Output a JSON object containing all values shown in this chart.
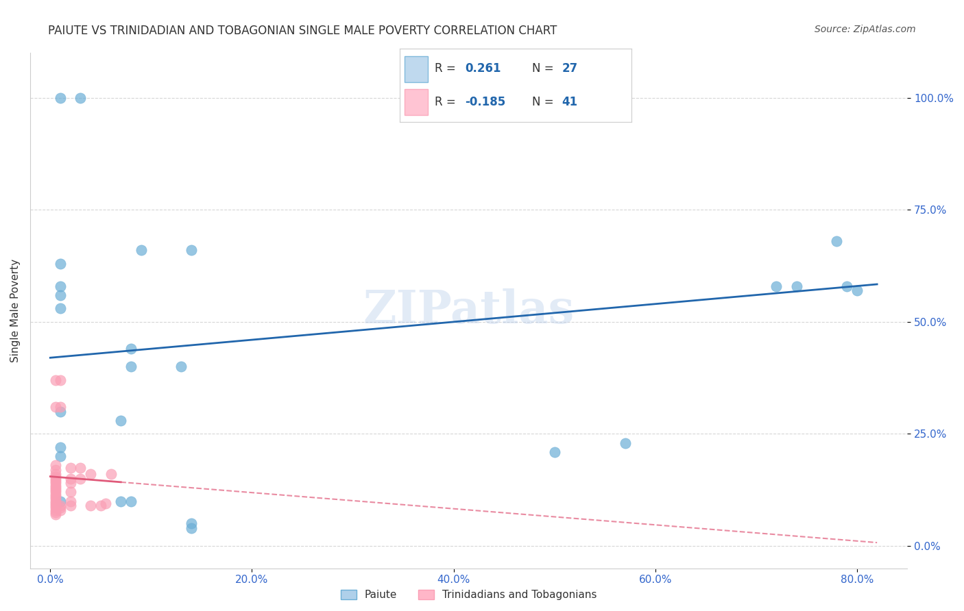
{
  "title": "PAIUTE VS TRINIDADIAN AND TOBAGONIAN SINGLE MALE POVERTY CORRELATION CHART",
  "source": "Source: ZipAtlas.com",
  "xlabel_ticks": [
    "0.0%",
    "20.0%",
    "40.0%",
    "60.0%",
    "80.0%"
  ],
  "ylabel_ticks": [
    "0.0%",
    "25.0%",
    "50.0%",
    "75.0%",
    "100.0%"
  ],
  "xlim": [
    -0.02,
    0.85
  ],
  "ylim": [
    -0.05,
    1.1
  ],
  "ylabel": "Single Male Poverty",
  "legend_label1": "Paiute",
  "legend_label2": "Trinidadians and Tobagonians",
  "r1": 0.261,
  "n1": 27,
  "r2": -0.185,
  "n2": 41,
  "blue_color": "#6baed6",
  "pink_color": "#fa9fb5",
  "blue_fill": "#afd0ea",
  "pink_fill": "#ffb6c8",
  "blue_line_color": "#2166ac",
  "pink_line_color": "#e05a7a",
  "blue_scatter": [
    [
      0.01,
      1.0
    ],
    [
      0.03,
      1.0
    ],
    [
      0.01,
      0.63
    ],
    [
      0.09,
      0.66
    ],
    [
      0.14,
      0.66
    ],
    [
      0.01,
      0.58
    ],
    [
      0.01,
      0.56
    ],
    [
      0.01,
      0.53
    ],
    [
      0.08,
      0.44
    ],
    [
      0.08,
      0.4
    ],
    [
      0.13,
      0.4
    ],
    [
      0.01,
      0.3
    ],
    [
      0.07,
      0.28
    ],
    [
      0.01,
      0.22
    ],
    [
      0.01,
      0.2
    ],
    [
      0.5,
      0.21
    ],
    [
      0.57,
      0.23
    ],
    [
      0.01,
      0.1
    ],
    [
      0.07,
      0.1
    ],
    [
      0.08,
      0.1
    ],
    [
      0.14,
      0.05
    ],
    [
      0.14,
      0.04
    ],
    [
      0.72,
      0.58
    ],
    [
      0.74,
      0.58
    ],
    [
      0.78,
      0.68
    ],
    [
      0.79,
      0.58
    ],
    [
      0.8,
      0.57
    ]
  ],
  "pink_scatter": [
    [
      0.005,
      0.37
    ],
    [
      0.01,
      0.37
    ],
    [
      0.005,
      0.31
    ],
    [
      0.01,
      0.31
    ],
    [
      0.005,
      0.18
    ],
    [
      0.005,
      0.17
    ],
    [
      0.005,
      0.16
    ],
    [
      0.005,
      0.155
    ],
    [
      0.005,
      0.15
    ],
    [
      0.005,
      0.145
    ],
    [
      0.005,
      0.14
    ],
    [
      0.005,
      0.135
    ],
    [
      0.005,
      0.13
    ],
    [
      0.005,
      0.125
    ],
    [
      0.005,
      0.12
    ],
    [
      0.005,
      0.115
    ],
    [
      0.005,
      0.11
    ],
    [
      0.005,
      0.105
    ],
    [
      0.005,
      0.1
    ],
    [
      0.005,
      0.095
    ],
    [
      0.005,
      0.09
    ],
    [
      0.005,
      0.085
    ],
    [
      0.005,
      0.08
    ],
    [
      0.005,
      0.075
    ],
    [
      0.005,
      0.07
    ],
    [
      0.01,
      0.09
    ],
    [
      0.01,
      0.085
    ],
    [
      0.01,
      0.08
    ],
    [
      0.02,
      0.175
    ],
    [
      0.02,
      0.15
    ],
    [
      0.02,
      0.14
    ],
    [
      0.02,
      0.12
    ],
    [
      0.02,
      0.1
    ],
    [
      0.02,
      0.09
    ],
    [
      0.03,
      0.175
    ],
    [
      0.03,
      0.15
    ],
    [
      0.04,
      0.16
    ],
    [
      0.04,
      0.09
    ],
    [
      0.05,
      0.09
    ],
    [
      0.055,
      0.095
    ],
    [
      0.06,
      0.16
    ]
  ],
  "blue_line_y_intercept": 0.42,
  "blue_line_slope": 0.2,
  "pink_line_y_intercept": 0.155,
  "pink_line_slope": -0.18,
  "grid_color": "#cccccc",
  "background_color": "#ffffff",
  "watermark": "ZIPatlas"
}
